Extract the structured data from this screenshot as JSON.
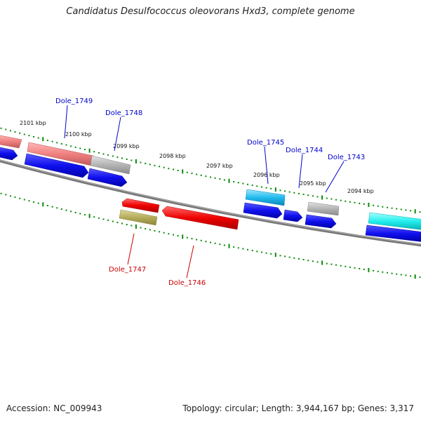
{
  "title": "Candidatus Desulfococcus oleovorans Hxd3, complete genome",
  "footer": {
    "accession": "Accession: NC_009943",
    "summary": "Topology: circular; Length: 3,944,167 bp; Genes: 3,317"
  },
  "scale_labels": [
    "2101 kbp",
    "2100 kbp",
    "2099 kbp",
    "2098 kbp",
    "2097 kbp",
    "2096 kbp",
    "2095 kbp",
    "2094 kbp"
  ],
  "gene_labels": {
    "dole_1749": "Dole_1749",
    "dole_1748": "Dole_1748",
    "dole_1745": "Dole_1745",
    "dole_1744": "Dole_1744",
    "dole_1743": "Dole_1743",
    "dole_1747": "Dole_1747",
    "dole_1746": "Dole_1746"
  },
  "colors": {
    "backbone": "#808080",
    "tick": "#0a8a0a",
    "forward_label": "#0000cc",
    "reverse_label": "#cc0000",
    "cds_blue": "#1010ee",
    "gene_red": "#ee0000",
    "gene_pink": "#f08080",
    "gene_gray": "#b4b4b4",
    "gene_cyan": "#22bbee",
    "gene_olive": "#b4ad5a"
  }
}
